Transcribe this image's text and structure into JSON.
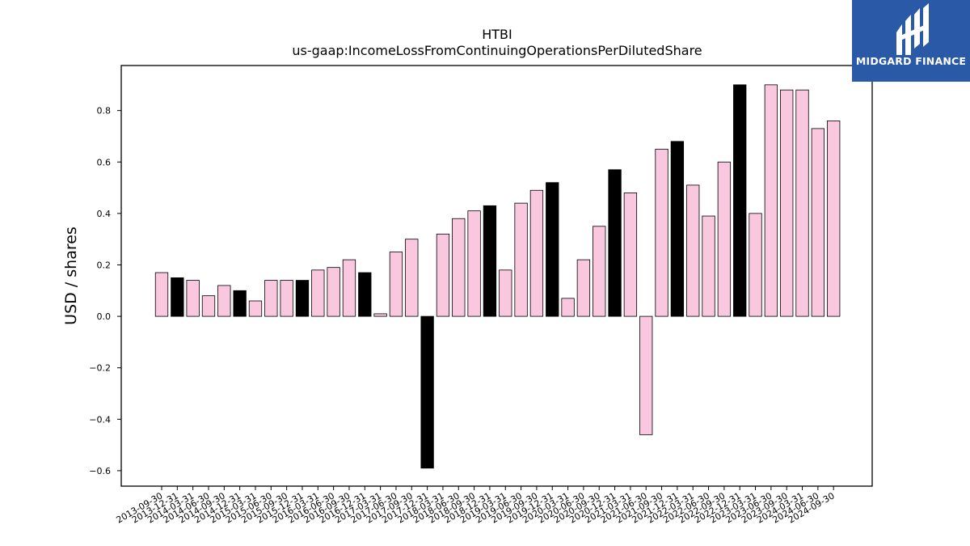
{
  "logo": {
    "text": "MIDGARD FINANCE",
    "background": "#2a59a8"
  },
  "chart_data": {
    "type": "bar",
    "title": "HTBI",
    "subtitle": "us-gaap:IncomeLossFromContinuingOperationsPerDilutedShare",
    "xlabel": "",
    "ylabel": "USD / shares",
    "ylim": [
      -0.66,
      0.975
    ],
    "yticks": [
      -0.6,
      -0.4,
      -0.2,
      0.0,
      0.2,
      0.4,
      0.6,
      0.8
    ],
    "ytick_labels": [
      "−0.6",
      "−0.4",
      "−0.2",
      "0.0",
      "0.2",
      "0.4",
      "0.6",
      "0.8"
    ],
    "grid": false,
    "colors": {
      "quarter": "#f9c8df",
      "year_end": "#000000",
      "edge": "#000000"
    },
    "categories": [
      "2013-09-30",
      "2013-12-31",
      "2014-03-31",
      "2014-06-30",
      "2014-09-30",
      "2014-12-31",
      "2015-03-31",
      "2015-06-30",
      "2015-09-30",
      "2015-12-31",
      "2016-03-31",
      "2016-06-30",
      "2016-09-30",
      "2016-12-31",
      "2017-03-31",
      "2017-06-30",
      "2017-09-30",
      "2017-12-31",
      "2018-03-31",
      "2018-06-30",
      "2018-09-30",
      "2018-12-31",
      "2019-03-31",
      "2019-06-30",
      "2019-09-30",
      "2019-12-31",
      "2020-03-31",
      "2020-06-30",
      "2020-09-30",
      "2020-12-31",
      "2021-03-31",
      "2021-06-30",
      "2021-09-30",
      "2021-12-31",
      "2022-03-31",
      "2022-06-30",
      "2022-09-30",
      "2022-12-31",
      "2023-03-31",
      "2023-06-30",
      "2023-09-30",
      "2024-03-31",
      "2024-06-30",
      "2024-09-30"
    ],
    "values": [
      0.17,
      0.15,
      0.14,
      0.08,
      0.12,
      0.1,
      0.06,
      0.14,
      0.14,
      0.14,
      0.18,
      0.19,
      0.22,
      0.17,
      0.01,
      0.25,
      0.3,
      -0.59,
      0.32,
      0.38,
      0.41,
      0.43,
      0.18,
      0.44,
      0.49,
      0.52,
      0.07,
      0.22,
      0.35,
      0.57,
      0.48,
      -0.46,
      0.65,
      0.68,
      0.51,
      0.39,
      0.6,
      0.9,
      0.4,
      0.9,
      0.88,
      0.88,
      0.73,
      0.76
    ]
  }
}
